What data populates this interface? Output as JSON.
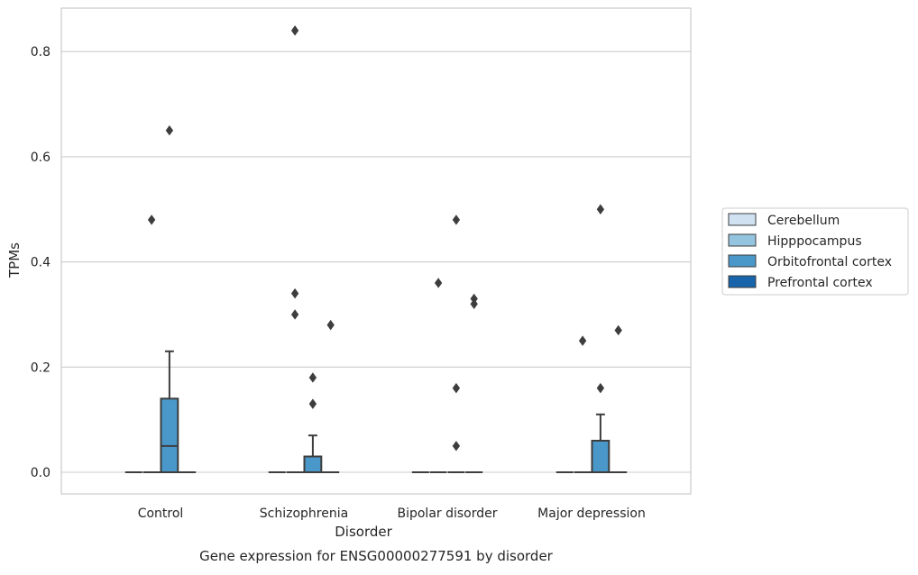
{
  "chart_data": {
    "type": "box",
    "caption": "Gene expression for ENSG00000277591 by disorder",
    "xlabel": "Disorder",
    "ylabel": "TPMs",
    "ylim": [
      -0.04,
      0.885
    ],
    "yticks": [
      0.0,
      0.2,
      0.4,
      0.6,
      0.8
    ],
    "ytick_labels": [
      "0.0",
      "0.2",
      "0.4",
      "0.6",
      "0.8"
    ],
    "grid": "horizontal",
    "legend_position": "right",
    "categories": [
      "Control",
      "Schizophrenia",
      "Bipolar disorder",
      "Major depression"
    ],
    "series": [
      {
        "name": "Cerebellum",
        "color": "#d0e1f2",
        "boxes": [
          {
            "q1": 0,
            "median": 0,
            "q3": 0,
            "whisker_low": 0,
            "whisker_high": 0,
            "outliers": []
          },
          {
            "q1": 0,
            "median": 0,
            "q3": 0,
            "whisker_low": 0,
            "whisker_high": 0,
            "outliers": []
          },
          {
            "q1": 0,
            "median": 0,
            "q3": 0,
            "whisker_low": 0,
            "whisker_high": 0,
            "outliers": []
          },
          {
            "q1": 0,
            "median": 0,
            "q3": 0,
            "whisker_low": 0,
            "whisker_high": 0,
            "outliers": []
          }
        ]
      },
      {
        "name": "Hipppocampus",
        "color": "#94c4df",
        "boxes": [
          {
            "q1": 0,
            "median": 0,
            "q3": 0,
            "whisker_low": 0,
            "whisker_high": 0,
            "outliers": [
              0.48
            ]
          },
          {
            "q1": 0,
            "median": 0,
            "q3": 0,
            "whisker_low": 0,
            "whisker_high": 0,
            "outliers": [
              0.84,
              0.34,
              0.3
            ]
          },
          {
            "q1": 0,
            "median": 0,
            "q3": 0,
            "whisker_low": 0,
            "whisker_high": 0,
            "outliers": [
              0.36
            ]
          },
          {
            "q1": 0,
            "median": 0,
            "q3": 0,
            "whisker_low": 0,
            "whisker_high": 0,
            "outliers": [
              0.25
            ]
          }
        ]
      },
      {
        "name": "Orbitofrontal cortex",
        "color": "#4a98c9",
        "boxes": [
          {
            "q1": 0,
            "median": 0.05,
            "q3": 0.14,
            "whisker_low": 0,
            "whisker_high": 0.23,
            "outliers": [
              0.65
            ]
          },
          {
            "q1": 0,
            "median": 0,
            "q3": 0.03,
            "whisker_low": 0,
            "whisker_high": 0.07,
            "outliers": [
              0.18,
              0.13
            ]
          },
          {
            "q1": 0,
            "median": 0,
            "q3": 0,
            "whisker_low": 0,
            "whisker_high": 0,
            "outliers": [
              0.48,
              0.16,
              0.05
            ]
          },
          {
            "q1": 0,
            "median": 0,
            "q3": 0.06,
            "whisker_low": 0,
            "whisker_high": 0.11,
            "outliers": [
              0.5,
              0.16
            ]
          }
        ]
      },
      {
        "name": "Prefrontal cortex",
        "color": "#1764ab",
        "boxes": [
          {
            "q1": 0,
            "median": 0,
            "q3": 0,
            "whisker_low": 0,
            "whisker_high": 0,
            "outliers": []
          },
          {
            "q1": 0,
            "median": 0,
            "q3": 0,
            "whisker_low": 0,
            "whisker_high": 0,
            "outliers": [
              0.28
            ]
          },
          {
            "q1": 0,
            "median": 0,
            "q3": 0,
            "whisker_low": 0,
            "whisker_high": 0,
            "outliers": [
              0.33,
              0.32
            ]
          },
          {
            "q1": 0,
            "median": 0,
            "q3": 0,
            "whisker_low": 0,
            "whisker_high": 0,
            "outliers": [
              0.27
            ]
          }
        ]
      }
    ],
    "colors": {
      "box_edge": "#3d3d3d",
      "grid": "#cccccc",
      "frame": "#cccccc",
      "text": "#262626"
    }
  }
}
